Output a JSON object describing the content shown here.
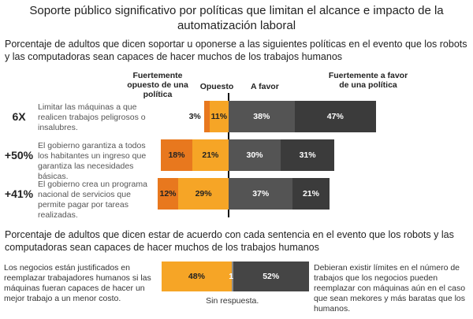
{
  "chart_data": [
    {
      "type": "diverging_bar",
      "title": "Soporte público significativo por políticas que limitan el alcance e impacto de la automatización laboral",
      "subtitle": "Porcentaje de adultos que dicen soportar u oponerse a las siguientes políticas en el evento que los robots y las computadoras sean capaces de hacer muchos de los trabajos humanos",
      "row_labels": [
        "6X",
        "+50%",
        "+41%"
      ],
      "categories": [
        "Limitar las máquinas a que realicen trabajos peligrosos o insalubres.",
        "El gobierno garantiza a todos los habitantes un ingreso que garantiza las necesidades básicas.",
        "El gobierno crea un programa nacional de servicios que permite pagar por tareas realizadas."
      ],
      "series": [
        {
          "name": "Fuertemente opuesto de una política",
          "color": "#e8781e",
          "values": [
            3,
            18,
            12
          ],
          "value_labels": [
            "3%",
            "18%",
            "12%"
          ]
        },
        {
          "name": "Opuesto",
          "color": "#f6a526",
          "values": [
            11,
            21,
            29
          ],
          "value_labels": [
            "11%",
            "21%",
            "29%"
          ]
        },
        {
          "name": "A favor",
          "color": "#545454",
          "values": [
            38,
            30,
            37
          ],
          "value_labels": [
            "38%",
            "30%",
            "37%"
          ]
        },
        {
          "name": "Fuertemente a favor de una política",
          "color": "#3b3b3b",
          "values": [
            47,
            31,
            21
          ],
          "value_labels": [
            "47%",
            "31%",
            "21%"
          ]
        }
      ]
    },
    {
      "type": "stacked_bar",
      "title": "Porcentaje de adultos que dicen estar de acuerdo con cada sentencia en el evento que los robots y las computadoras sean capaces de hacer muchos de los trabajos humanos",
      "series": [
        {
          "name": "Los negocios están justificados en reemplazar trabajadores humanos si las máquinas fueran capaces de hacer un mejor trabajo a un menor costo.",
          "color": "#f6a526",
          "values": [
            48
          ],
          "value_labels": [
            "48%"
          ]
        },
        {
          "name": "Sin respuesta.",
          "color": "#8a8a8a",
          "values": [
            1
          ],
          "value_labels": [
            "1%"
          ]
        },
        {
          "name": "Debieran existir límites en el número de trabajos que los negocios pueden reemplazar con máquinas aún en el caso que sean mekores y más baratas que los humanos.",
          "color": "#454545",
          "values": [
            52
          ],
          "value_labels": [
            "52%"
          ]
        }
      ]
    }
  ]
}
